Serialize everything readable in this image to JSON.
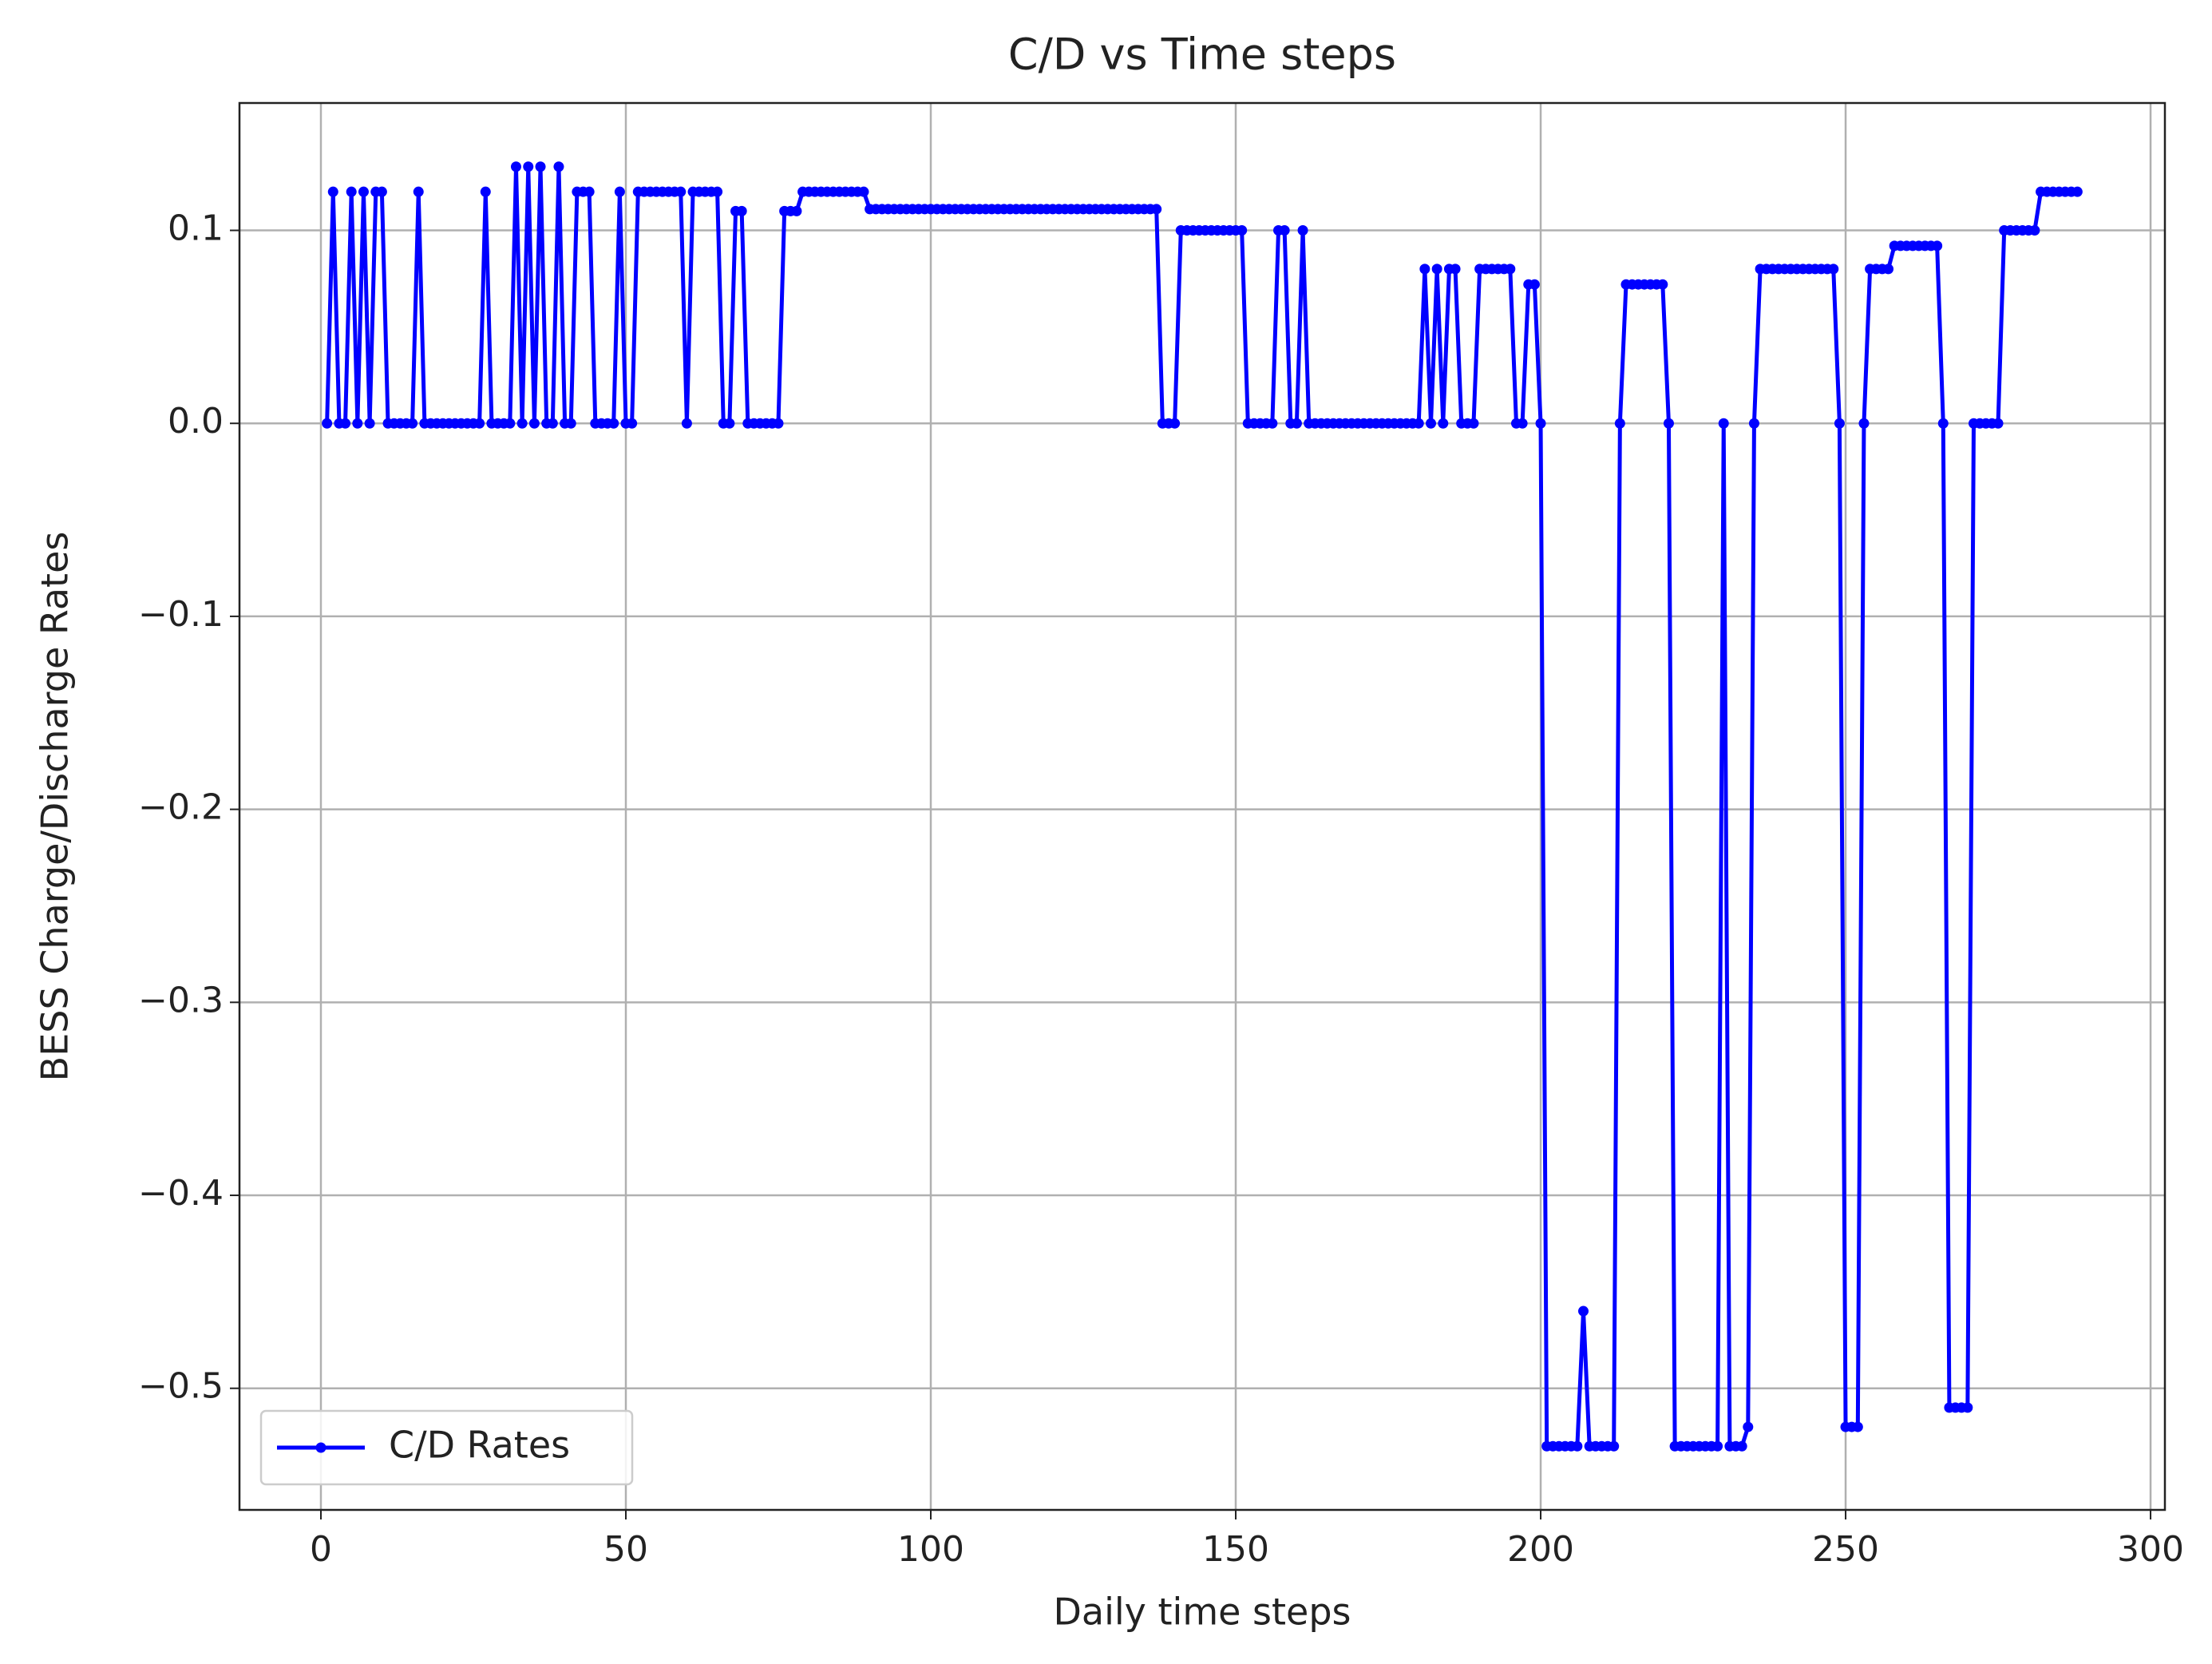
{
  "chart_data": {
    "type": "line",
    "title": "C/D vs Time steps",
    "x_label": "Daily time steps",
    "y_label": "BESS Charge/Discharge Rates",
    "x": [
      1,
      2,
      3,
      4,
      5,
      6,
      7,
      8,
      9,
      10,
      11,
      12,
      13,
      14,
      15,
      16,
      17,
      18,
      19,
      20,
      21,
      22,
      23,
      24,
      25,
      26,
      27,
      28,
      29,
      30,
      31,
      32,
      33,
      34,
      35,
      36,
      37,
      38,
      39,
      40,
      41,
      42,
      43,
      44,
      45,
      46,
      47,
      48,
      49,
      50,
      51,
      52,
      53,
      54,
      55,
      56,
      57,
      58,
      59,
      60,
      61,
      62,
      63,
      64,
      65,
      66,
      67,
      68,
      69,
      70,
      71,
      72,
      73,
      74,
      75,
      76,
      77,
      78,
      79,
      80,
      81,
      82,
      83,
      84,
      85,
      86,
      87,
      88,
      89,
      90,
      91,
      92,
      93,
      94,
      95,
      96,
      97,
      98,
      99,
      100,
      101,
      102,
      103,
      104,
      105,
      106,
      107,
      108,
      109,
      110,
      111,
      112,
      113,
      114,
      115,
      116,
      117,
      118,
      119,
      120,
      121,
      122,
      123,
      124,
      125,
      126,
      127,
      128,
      129,
      130,
      131,
      132,
      133,
      134,
      135,
      136,
      137,
      138,
      139,
      140,
      141,
      142,
      143,
      144,
      145,
      146,
      147,
      148,
      149,
      150,
      151,
      152,
      153,
      154,
      155,
      156,
      157,
      158,
      159,
      160,
      161,
      162,
      163,
      164,
      165,
      166,
      167,
      168,
      169,
      170,
      171,
      172,
      173,
      174,
      175,
      176,
      177,
      178,
      179,
      180,
      181,
      182,
      183,
      184,
      185,
      186,
      187,
      188,
      189,
      190,
      191,
      192,
      193,
      194,
      195,
      196,
      197,
      198,
      199,
      200,
      201,
      202,
      203,
      204,
      205,
      206,
      207,
      208,
      209,
      210,
      211,
      212,
      213,
      214,
      215,
      216,
      217,
      218,
      219,
      220,
      221,
      222,
      223,
      224,
      225,
      226,
      227,
      228,
      229,
      230,
      231,
      232,
      233,
      234,
      235,
      236,
      237,
      238,
      239,
      240,
      241,
      242,
      243,
      244,
      245,
      246,
      247,
      248,
      249,
      250,
      251,
      252,
      253,
      254,
      255,
      256,
      257,
      258,
      259,
      260,
      261,
      262,
      263,
      264,
      265,
      266,
      267,
      268,
      269,
      270,
      271,
      272,
      273,
      274,
      275,
      276,
      277,
      278,
      279,
      280,
      281,
      282,
      283,
      284,
      285,
      286,
      287,
      288
    ],
    "series": [
      {
        "name": "C/D Rates",
        "color": "#0000ff",
        "values": [
          0,
          0.12,
          0,
          0,
          0.12,
          0,
          0.12,
          0,
          0.12,
          0.12,
          0,
          0,
          0,
          0,
          0,
          0.12,
          0,
          0,
          0,
          0,
          0,
          0,
          0,
          0,
          0,
          0,
          0.12,
          0,
          0,
          0,
          0,
          0.133,
          0,
          0.133,
          0,
          0.133,
          0,
          0,
          0.133,
          0,
          0,
          0.12,
          0.12,
          0.12,
          0,
          0,
          0,
          0,
          0.12,
          0,
          0,
          0.12,
          0.12,
          0.12,
          0.12,
          0.12,
          0.12,
          0.12,
          0.12,
          0,
          0.12,
          0.12,
          0.12,
          0.12,
          0.12,
          0,
          0,
          0.11,
          0.11,
          0,
          0,
          0,
          0,
          0,
          0,
          0.11,
          0.11,
          0.11,
          0.12,
          0.12,
          0.12,
          0.12,
          0.12,
          0.12,
          0.12,
          0.12,
          0.12,
          0.12,
          0.12,
          0.111,
          0.111,
          0.111,
          0.111,
          0.111,
          0.111,
          0.111,
          0.111,
          0.111,
          0.111,
          0.111,
          0.111,
          0.111,
          0.111,
          0.111,
          0.111,
          0.111,
          0.111,
          0.111,
          0.111,
          0.111,
          0.111,
          0.111,
          0.111,
          0.111,
          0.111,
          0.111,
          0.111,
          0.111,
          0.111,
          0.111,
          0.111,
          0.111,
          0.111,
          0.111,
          0.111,
          0.111,
          0.111,
          0.111,
          0.111,
          0.111,
          0.111,
          0.111,
          0.111,
          0.111,
          0.111,
          0.111,
          0.111,
          0,
          0,
          0,
          0.1,
          0.1,
          0.1,
          0.1,
          0.1,
          0.1,
          0.1,
          0.1,
          0.1,
          0.1,
          0.1,
          0,
          0,
          0,
          0,
          0,
          0.1,
          0.1,
          0,
          0,
          0.1,
          0,
          0,
          0,
          0,
          0,
          0,
          0,
          0,
          0,
          0,
          0,
          0,
          0,
          0,
          0,
          0,
          0,
          0,
          0,
          0.08,
          0,
          0.08,
          0,
          0.08,
          0.08,
          0,
          0,
          0,
          0.08,
          0.08,
          0.08,
          0.08,
          0.08,
          0.08,
          0,
          0,
          0.072,
          0.072,
          0,
          -0.53,
          -0.53,
          -0.53,
          -0.53,
          -0.53,
          -0.53,
          -0.46,
          -0.53,
          -0.53,
          -0.53,
          -0.53,
          -0.53,
          0,
          0.072,
          0.072,
          0.072,
          0.072,
          0.072,
          0.072,
          0.072,
          0,
          -0.53,
          -0.53,
          -0.53,
          -0.53,
          -0.53,
          -0.53,
          -0.53,
          -0.53,
          0,
          -0.53,
          -0.53,
          -0.53,
          -0.52,
          0,
          0.08,
          0.08,
          0.08,
          0.08,
          0.08,
          0.08,
          0.08,
          0.08,
          0.08,
          0.08,
          0.08,
          0.08,
          0.08,
          0,
          -0.52,
          -0.52,
          -0.52,
          0,
          0.08,
          0.08,
          0.08,
          0.08,
          0.092,
          0.092,
          0.092,
          0.092,
          0.092,
          0.092,
          0.092,
          0.092,
          0,
          -0.51,
          -0.51,
          -0.51,
          -0.51,
          0,
          0,
          0,
          0,
          0,
          0.1,
          0.1,
          0.1,
          0.1,
          0.1,
          0.1,
          0.12,
          0.12,
          0.12,
          0.12,
          0.12,
          0.12,
          0.12
        ]
      }
    ],
    "xlim": [
      -13.35,
      302.35
    ],
    "ylim": [
      -0.563,
      0.166
    ],
    "xticks": [
      0,
      50,
      100,
      150,
      200,
      250,
      300
    ],
    "yticks": [
      0.1,
      {
        "value": 0,
        "label": "0.0"
      },
      {
        "value": -0.1,
        "label": "−0.1"
      },
      {
        "value": -0.2,
        "label": "−0.2"
      },
      {
        "value": -0.3,
        "label": "−0.3"
      },
      {
        "value": -0.4,
        "label": "−0.4"
      },
      {
        "value": -0.5,
        "label": "−0.5"
      }
    ],
    "grid": true,
    "legend": "lower left"
  }
}
